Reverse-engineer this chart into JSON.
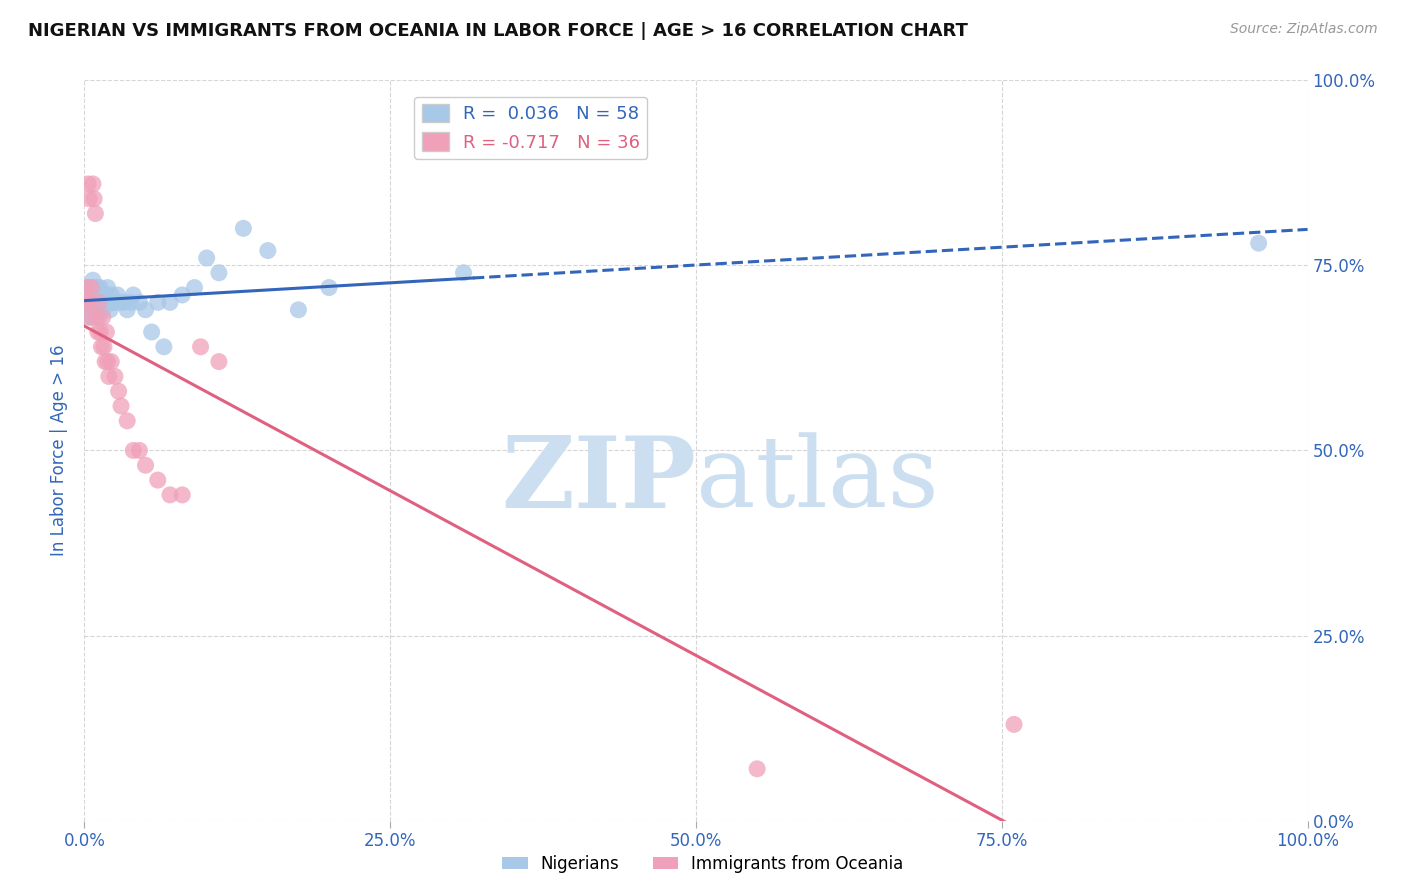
{
  "title": "NIGERIAN VS IMMIGRANTS FROM OCEANIA IN LABOR FORCE | AGE > 16 CORRELATION CHART",
  "source": "Source: ZipAtlas.com",
  "ylabel": "In Labor Force | Age > 16",
  "blue_R": 0.036,
  "blue_N": 58,
  "pink_R": -0.717,
  "pink_N": 36,
  "blue_color": "#a8c8e8",
  "pink_color": "#f0a0b8",
  "blue_line_color": "#3366bb",
  "pink_line_color": "#e06080",
  "legend_blue_label": "Nigerians",
  "legend_pink_label": "Immigrants from Oceania",
  "watermark_zip": "ZIP",
  "watermark_atlas": "atlas",
  "watermark_color": "#ccdff0",
  "background_color": "#ffffff",
  "grid_color": "#bbbbbb",
  "title_color": "#111111",
  "tick_label_color": "#3366bb",
  "blue_scatter_x": [
    0.001,
    0.002,
    0.003,
    0.003,
    0.004,
    0.004,
    0.005,
    0.005,
    0.005,
    0.006,
    0.006,
    0.007,
    0.007,
    0.008,
    0.008,
    0.009,
    0.009,
    0.01,
    0.01,
    0.011,
    0.011,
    0.012,
    0.012,
    0.013,
    0.013,
    0.014,
    0.015,
    0.016,
    0.017,
    0.018,
    0.019,
    0.02,
    0.021,
    0.022,
    0.023,
    0.025,
    0.027,
    0.03,
    0.032,
    0.035,
    0.038,
    0.04,
    0.045,
    0.05,
    0.055,
    0.06,
    0.065,
    0.07,
    0.08,
    0.09,
    0.1,
    0.11,
    0.13,
    0.15,
    0.175,
    0.2,
    0.31,
    0.96
  ],
  "blue_scatter_y": [
    0.7,
    0.71,
    0.69,
    0.72,
    0.68,
    0.7,
    0.69,
    0.71,
    0.72,
    0.7,
    0.68,
    0.72,
    0.73,
    0.7,
    0.71,
    0.69,
    0.72,
    0.7,
    0.71,
    0.69,
    0.72,
    0.7,
    0.68,
    0.71,
    0.72,
    0.7,
    0.69,
    0.7,
    0.71,
    0.7,
    0.72,
    0.7,
    0.69,
    0.71,
    0.7,
    0.7,
    0.71,
    0.7,
    0.7,
    0.69,
    0.7,
    0.71,
    0.7,
    0.69,
    0.66,
    0.7,
    0.64,
    0.7,
    0.71,
    0.72,
    0.76,
    0.74,
    0.8,
    0.77,
    0.69,
    0.72,
    0.74,
    0.78
  ],
  "pink_scatter_x": [
    0.001,
    0.002,
    0.003,
    0.004,
    0.005,
    0.005,
    0.006,
    0.007,
    0.008,
    0.009,
    0.01,
    0.011,
    0.012,
    0.013,
    0.014,
    0.015,
    0.016,
    0.017,
    0.018,
    0.019,
    0.02,
    0.022,
    0.025,
    0.028,
    0.03,
    0.035,
    0.04,
    0.045,
    0.05,
    0.06,
    0.07,
    0.08,
    0.095,
    0.11,
    0.55,
    0.76
  ],
  "pink_scatter_y": [
    0.7,
    0.72,
    0.86,
    0.84,
    0.68,
    0.7,
    0.72,
    0.86,
    0.84,
    0.82,
    0.68,
    0.66,
    0.7,
    0.66,
    0.64,
    0.68,
    0.64,
    0.62,
    0.66,
    0.62,
    0.6,
    0.62,
    0.6,
    0.58,
    0.56,
    0.54,
    0.5,
    0.5,
    0.48,
    0.46,
    0.44,
    0.44,
    0.64,
    0.62,
    0.07,
    0.13
  ],
  "xlim": [
    0.0,
    1.0
  ],
  "ylim": [
    0.0,
    1.0
  ],
  "xticks": [
    0.0,
    0.25,
    0.5,
    0.75,
    1.0
  ],
  "yticks": [
    0.0,
    0.25,
    0.5,
    0.75,
    1.0
  ],
  "xtick_labels": [
    "0.0%",
    "25.0%",
    "50.0%",
    "75.0%",
    "100.0%"
  ],
  "right_ytick_labels": [
    "0.0%",
    "25.0%",
    "50.0%",
    "75.0%",
    "100.0%"
  ]
}
